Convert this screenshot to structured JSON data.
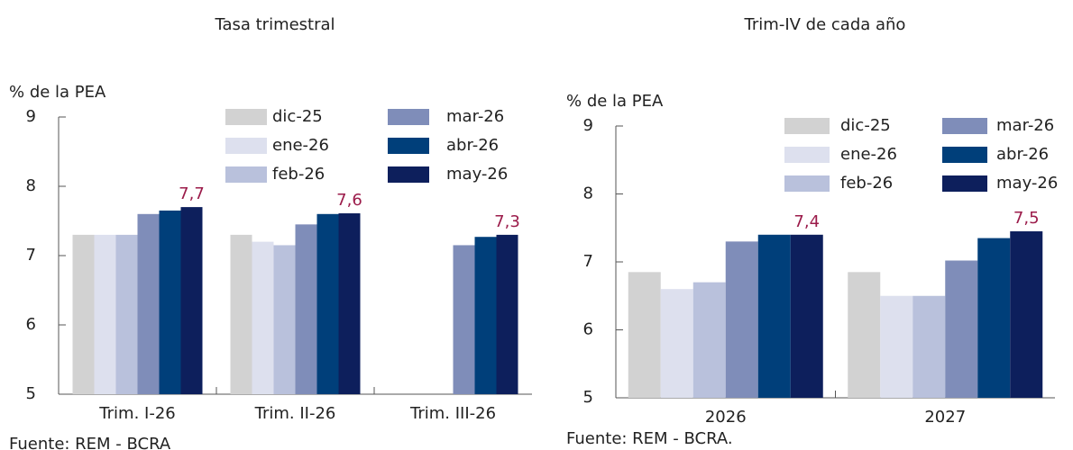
{
  "chart_data": [
    {
      "type": "bar",
      "subtitle": "Tasa trimestral",
      "ylabel": "% de la PEA",
      "source": "Fuente: REM - BCRA",
      "categories": [
        "Trim. I-26",
        "Trim. II-26",
        "Trim. III-26"
      ],
      "ylim": [
        5,
        9
      ],
      "yticks": [
        5,
        6,
        7,
        8,
        9
      ],
      "grid": false,
      "value_label_color": "#9b1b4a",
      "series": [
        {
          "name": "dic-25",
          "color": "#d2d2d2",
          "values": [
            7.3,
            7.3,
            null
          ]
        },
        {
          "name": "ene-26",
          "color": "#dde0ee",
          "values": [
            7.3,
            7.2,
            null
          ]
        },
        {
          "name": "feb-26",
          "color": "#b9c1dc",
          "values": [
            7.3,
            7.15,
            null
          ]
        },
        {
          "name": "mar-26",
          "color": "#7f8db9",
          "values": [
            7.6,
            7.45,
            7.15
          ]
        },
        {
          "name": "abr-26",
          "color": "#003f7a",
          "values": [
            7.65,
            7.6,
            7.27
          ]
        },
        {
          "name": "may-26",
          "color": "#0d1f5c",
          "values": [
            7.7,
            7.61,
            7.3
          ],
          "value_labels": [
            "7,7",
            "7,6",
            "7,3"
          ]
        }
      ]
    },
    {
      "type": "bar",
      "subtitle": "Trim-IV de cada año",
      "ylabel": "% de la PEA",
      "source": "Fuente: REM - BCRA.",
      "categories": [
        "2026",
        "2027"
      ],
      "ylim": [
        5,
        9
      ],
      "yticks": [
        5,
        6,
        7,
        8,
        9
      ],
      "grid": false,
      "value_label_color": "#9b1b4a",
      "series": [
        {
          "name": "dic-25",
          "color": "#d2d2d2",
          "values": [
            6.85,
            6.85
          ]
        },
        {
          "name": "ene-26",
          "color": "#dde0ee",
          "values": [
            6.6,
            6.5
          ]
        },
        {
          "name": "feb-26",
          "color": "#b9c1dc",
          "values": [
            6.7,
            6.5
          ]
        },
        {
          "name": "mar-26",
          "color": "#7f8db9",
          "values": [
            7.3,
            7.02
          ]
        },
        {
          "name": "abr-26",
          "color": "#003f7a",
          "values": [
            7.4,
            7.35
          ]
        },
        {
          "name": "may-26",
          "color": "#0d1f5c",
          "values": [
            7.4,
            7.45
          ],
          "value_labels": [
            "7,4",
            "7,5"
          ]
        }
      ]
    }
  ]
}
